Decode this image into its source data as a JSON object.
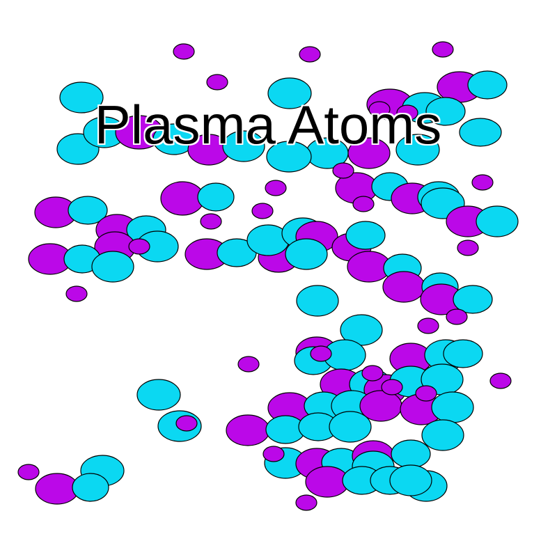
{
  "game": {
    "title": "Plasma Atoms"
  },
  "colors": {
    "background": "#ffffff",
    "cyan_atom": "#0bd8f2",
    "magenta_atom": "#bb08e8",
    "outline": "#000000",
    "title_text": "#000000",
    "title_outline": "#ffffff"
  }
}
